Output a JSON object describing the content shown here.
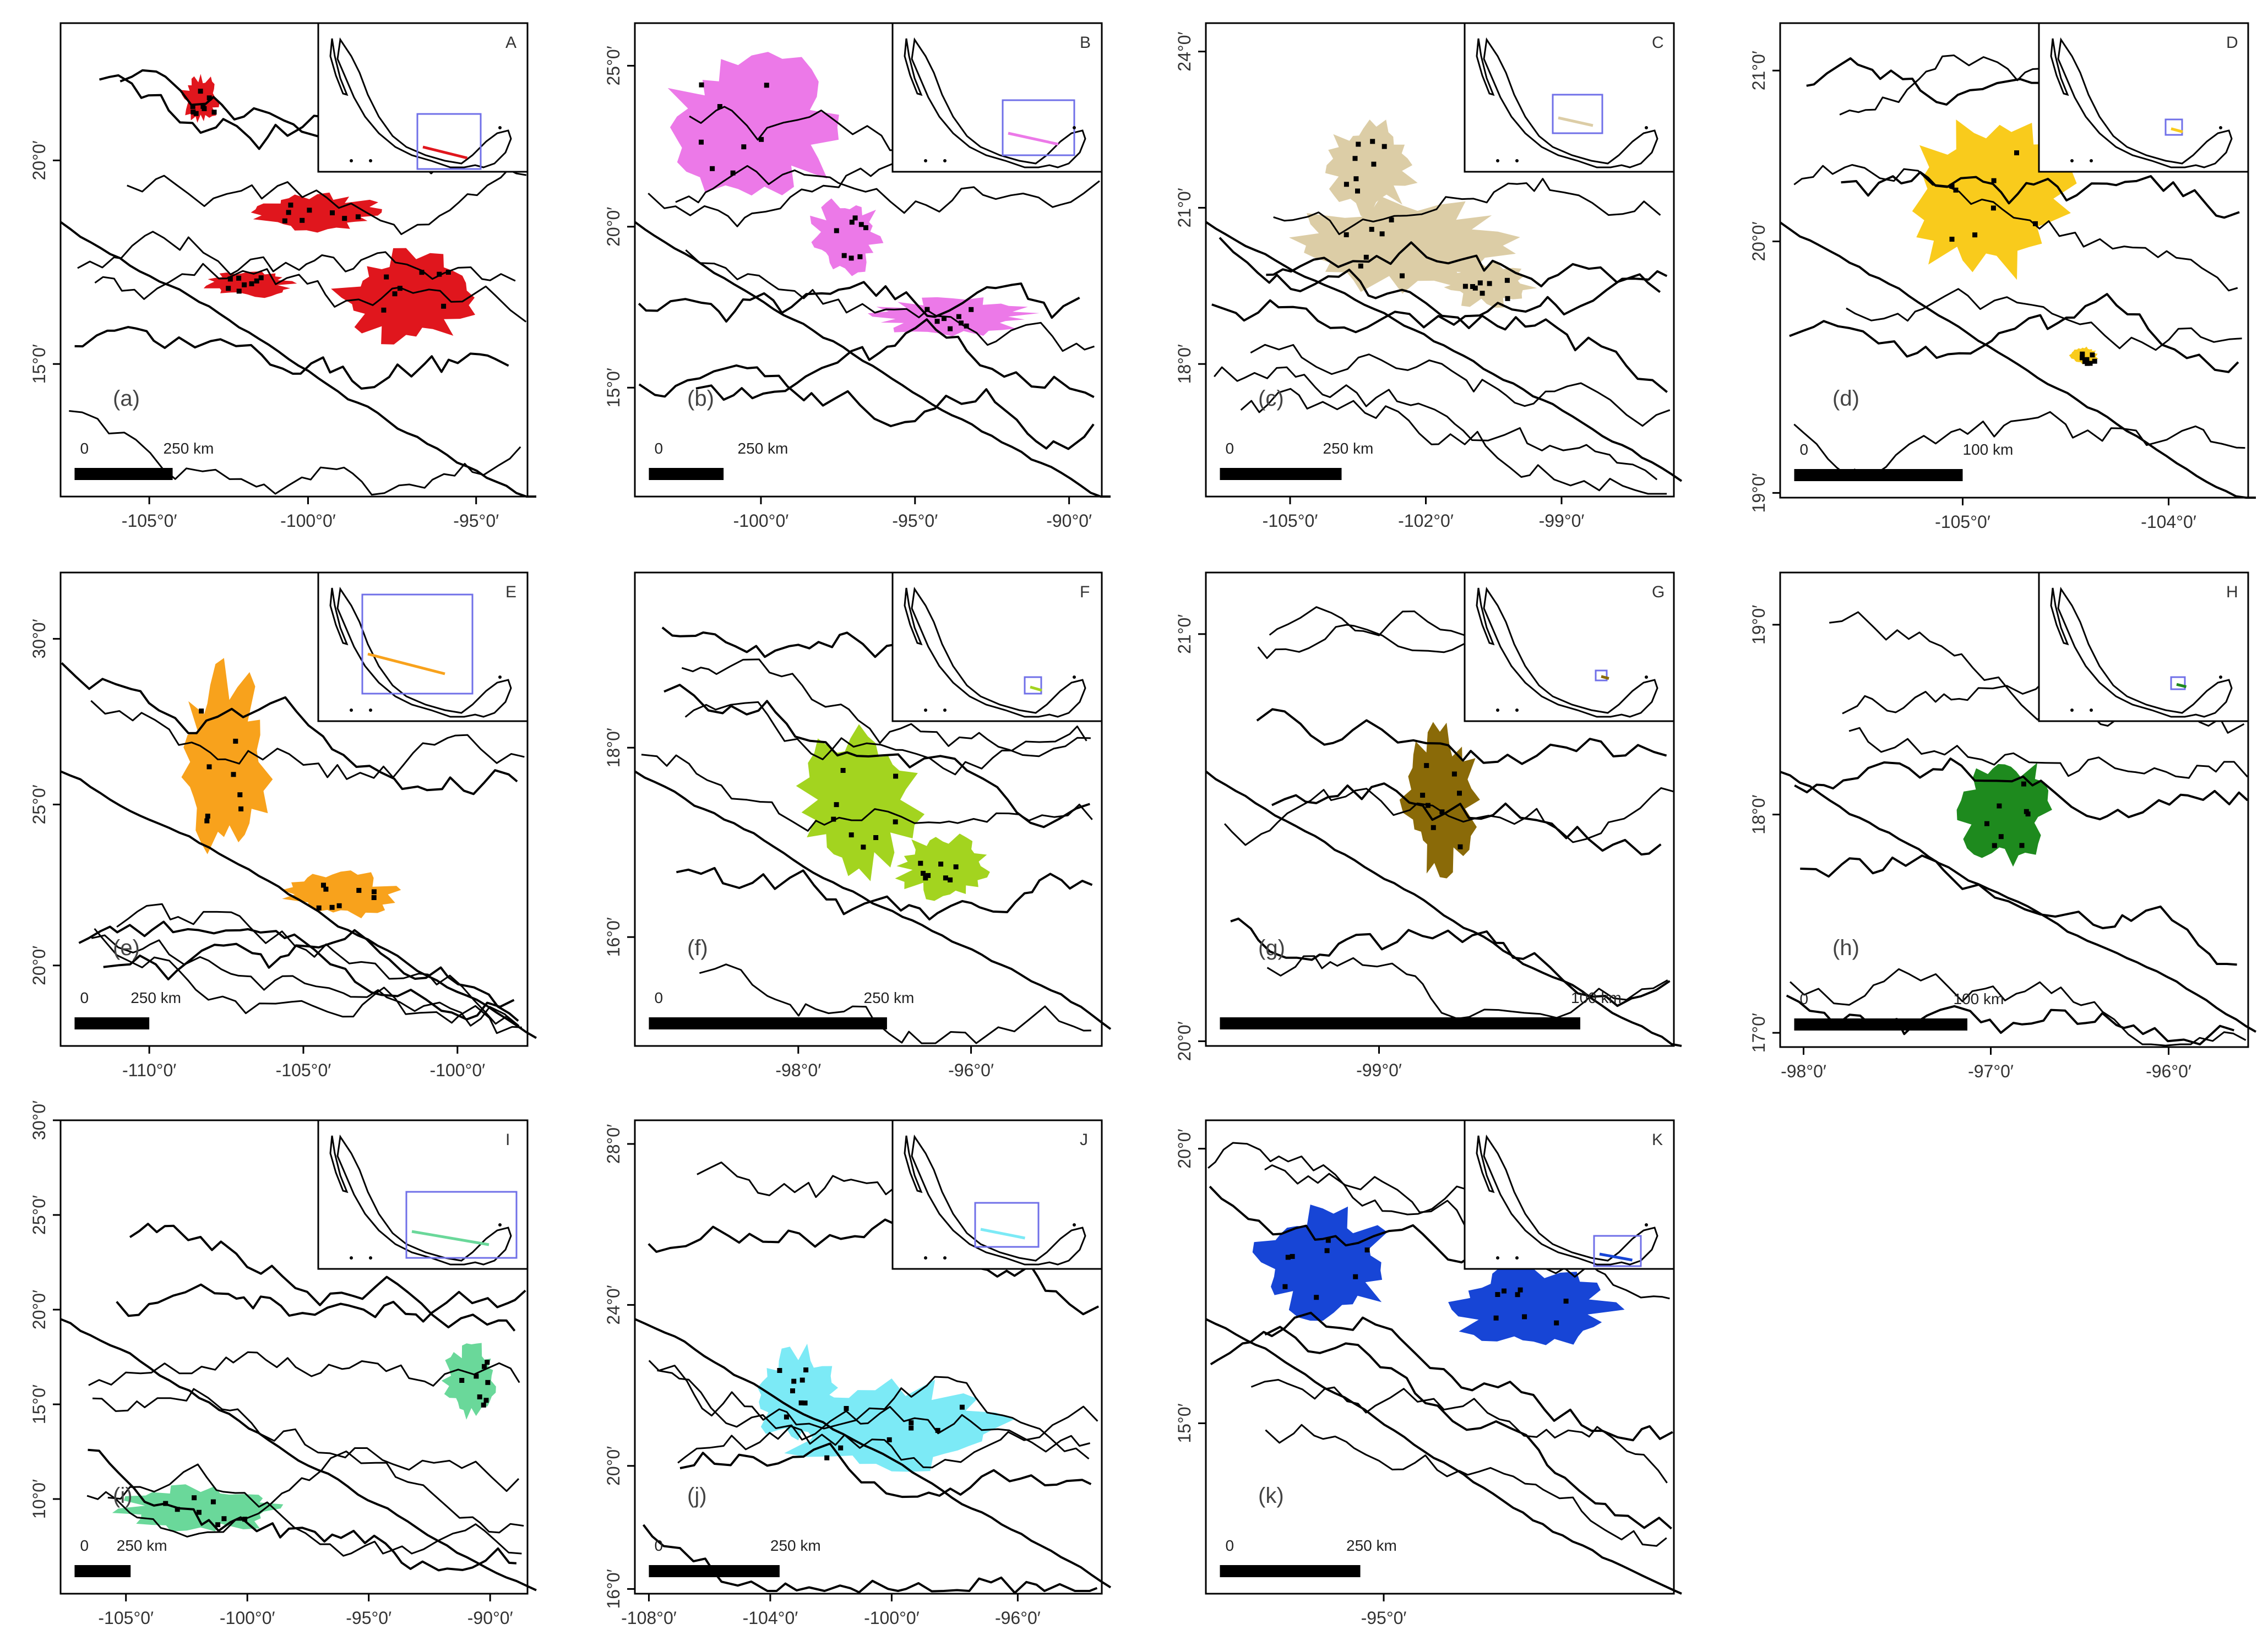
{
  "panels": [
    {
      "id": "a",
      "label": "(a)",
      "inset_letter": "A",
      "color": "#e0161d",
      "scale_zero": "0",
      "scale_text": "250 km",
      "x_ticks": [
        "-105°0′",
        "-100°0′",
        "-95°0′"
      ],
      "y_ticks": [
        "20°0′",
        "15°0′"
      ]
    },
    {
      "id": "b",
      "label": "(b)",
      "inset_letter": "B",
      "color": "#ec79e8",
      "scale_zero": "0",
      "scale_text": "250 km",
      "x_ticks": [
        "-100°0′",
        "-95°0′",
        "-90°0′"
      ],
      "y_ticks": [
        "25°0′",
        "20°0′",
        "15°0′"
      ]
    },
    {
      "id": "c",
      "label": "(c)",
      "inset_letter": "C",
      "color": "#dccda6",
      "scale_zero": "0",
      "scale_text": "250 km",
      "x_ticks": [
        "-105°0′",
        "-102°0′",
        "-99°0′"
      ],
      "y_ticks": [
        "24°0′",
        "21°0′",
        "18°0′"
      ]
    },
    {
      "id": "d",
      "label": "(d)",
      "inset_letter": "D",
      "color": "#f9cb1c",
      "scale_zero": "0",
      "scale_text": "100 km",
      "x_ticks": [
        "-105°0′",
        "-104°0′"
      ],
      "y_ticks": [
        "21°0′",
        "20°0′",
        "19°0′"
      ]
    },
    {
      "id": "e",
      "label": "(e)",
      "inset_letter": "E",
      "color": "#f8a21c",
      "scale_zero": "0",
      "scale_text": "250 km",
      "x_ticks": [
        "-110°0′",
        "-105°0′",
        "-100°0′"
      ],
      "y_ticks": [
        "30°0′",
        "25°0′",
        "20°0′"
      ]
    },
    {
      "id": "f",
      "label": "(f)",
      "inset_letter": "F",
      "color": "#a3d41f",
      "scale_zero": "0",
      "scale_text": "250 km",
      "x_ticks": [
        "-98°0′",
        "-96°0′"
      ],
      "y_ticks": [
        "18°0′",
        "16°0′"
      ]
    },
    {
      "id": "g",
      "label": "(g)",
      "inset_letter": "G",
      "color": "#8a6a08",
      "scale_zero": "",
      "scale_text": "100 km",
      "x_ticks": [
        "-99°0′"
      ],
      "y_ticks": [
        "21°0′",
        "20°0′"
      ]
    },
    {
      "id": "h",
      "label": "(h)",
      "inset_letter": "H",
      "color": "#1e8a1e",
      "scale_zero": "0",
      "scale_text": "100 km",
      "x_ticks": [
        "-98°0′",
        "-97°0′",
        "-96°0′"
      ],
      "y_ticks": [
        "19°0′",
        "18°0′",
        "17°0′"
      ]
    },
    {
      "id": "i",
      "label": "(i)",
      "inset_letter": "I",
      "color": "#6ad89a",
      "scale_zero": "0",
      "scale_text": "250 km",
      "x_ticks": [
        "-105°0′",
        "-100°0′",
        "-95°0′",
        "-90°0′"
      ],
      "y_ticks": [
        "30°0′",
        "25°0′",
        "20°0′",
        "15°0′",
        "10°0′"
      ]
    },
    {
      "id": "j",
      "label": "(j)",
      "inset_letter": "J",
      "color": "#7ceaf6",
      "scale_zero": "0",
      "scale_text": "250 km",
      "x_ticks": [
        "-108°0′",
        "-104°0′",
        "-100°0′",
        "-96°0′"
      ],
      "y_ticks": [
        "28°0′",
        "24°0′",
        "20°0′",
        "16°0′"
      ]
    },
    {
      "id": "k",
      "label": "(k)",
      "inset_letter": "K",
      "color": "#1745d6",
      "scale_zero": "0",
      "scale_text": "250 km",
      "x_ticks": [
        "-95°0′"
      ],
      "y_ticks": [
        "20°0′",
        "15°0′"
      ]
    }
  ],
  "inset_box_color": "#7070e8",
  "outline_color": "#000000"
}
